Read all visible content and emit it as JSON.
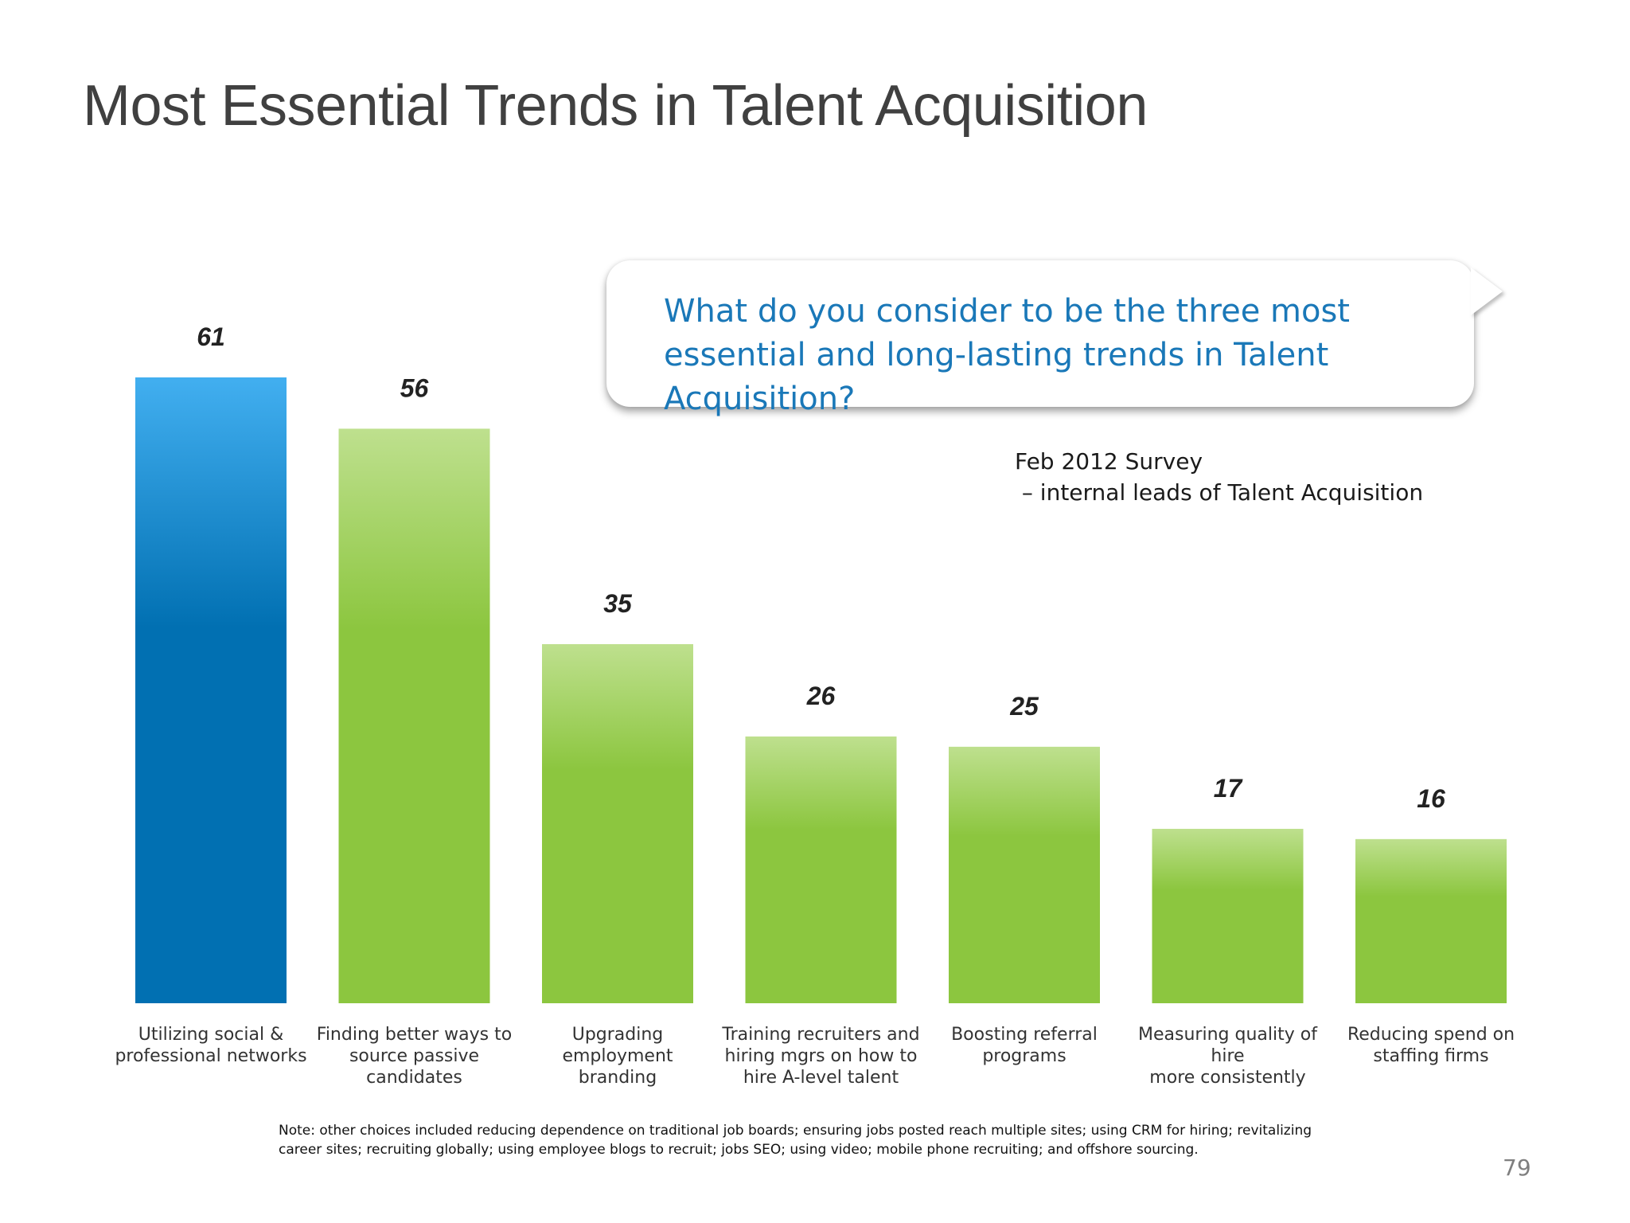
{
  "slide": {
    "title": "Most Essential Trends in Talent Acquisition",
    "callout_question": "What do you consider to be the three most essential and long-lasting trends in Talent Acquisition?",
    "survey_line1": "Feb 2012 Survey",
    "survey_line2": " – internal leads of Talent Acquisition",
    "footnote": "Note: other choices included reducing dependence on traditional job boards; ensuring jobs posted reach multiple sites; using CRM for hiring; revitalizing career sites; recruiting globally; using employee blogs to recruit; jobs SEO; using video; mobile phone recruiting; and offshore sourcing.",
    "page_number": "79"
  },
  "colors": {
    "highlight_bar_top": "#42aff0",
    "highlight_bar_bottom": "#0170b2",
    "bar_top": "#bee08e",
    "bar_bottom": "#8cc63f",
    "callout_text": "#1a78b8",
    "title_text": "#404040"
  },
  "chart_data": {
    "type": "bar",
    "title": "",
    "xlabel": "",
    "ylabel": "",
    "ylim": [
      0,
      61
    ],
    "grid": false,
    "legend": "none",
    "highlight_index": 0,
    "categories": [
      "Utilizing social &\nprofessional networks",
      "Finding better ways to\nsource passive\ncandidates",
      "Upgrading employment\nbranding",
      "Training recruiters and\nhiring mgrs on how to\nhire A-level talent",
      "Boosting referral\nprograms",
      "Measuring quality of hire\nmore consistently",
      "Reducing spend on\nstaffing firms"
    ],
    "values": [
      61,
      56,
      35,
      26,
      25,
      17,
      16
    ],
    "data_labels": [
      "61",
      "56",
      "35",
      "26",
      "25",
      "17",
      "16"
    ]
  }
}
